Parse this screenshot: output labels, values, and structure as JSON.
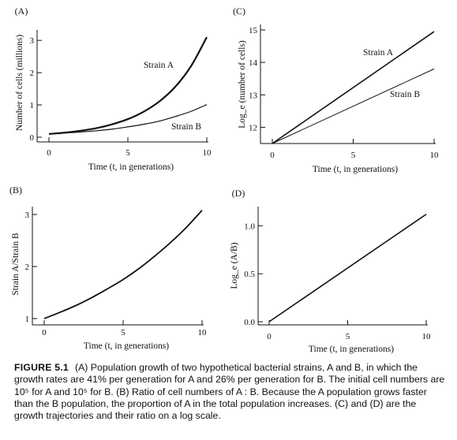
{
  "caption": {
    "label": "FIGURE 5.1",
    "text": "(A) Population growth of two hypothetical bacterial strains, A and B, in which the growth rates are 41% per generation for A and 26% per generation for B. The initial cell numbers are 10⁵ for A and 10⁵ for B. (B) Ratio of cell numbers of A : B. Because the A population grows faster than the B population, the proportion of A in the total population increases. (C) and (D) are the growth trajectories and their ratio on a log scale."
  },
  "chart_data": [
    {
      "panel": "(A)",
      "type": "line",
      "xlabel": "Time (t, in generations)",
      "ylabel": "Number of cells (millions)",
      "xlim": [
        0,
        10
      ],
      "ylim": [
        0,
        3.2
      ],
      "xticks": [
        0,
        5,
        10
      ],
      "yticks": [
        0,
        1,
        2,
        3
      ],
      "series": [
        {
          "name": "Strain A",
          "x": [
            0,
            1,
            2,
            3,
            4,
            5,
            6,
            7,
            8,
            9,
            10
          ],
          "y": [
            0.1,
            0.14,
            0.2,
            0.28,
            0.4,
            0.56,
            0.79,
            1.11,
            1.56,
            2.2,
            3.1
          ]
        },
        {
          "name": "Strain B",
          "x": [
            0,
            1,
            2,
            3,
            4,
            5,
            6,
            7,
            8,
            9,
            10
          ],
          "y": [
            0.1,
            0.13,
            0.16,
            0.2,
            0.25,
            0.32,
            0.4,
            0.5,
            0.64,
            0.8,
            1.01
          ]
        }
      ]
    },
    {
      "panel": "(B)",
      "type": "line",
      "xlabel": "Time (t, in generations)",
      "ylabel": "Strain A/Strain B",
      "xlim": [
        0,
        10
      ],
      "ylim": [
        1,
        3
      ],
      "xticks": [
        0,
        5,
        10
      ],
      "yticks": [
        1,
        2,
        3
      ],
      "series": [
        {
          "name": "",
          "x": [
            0,
            1,
            2,
            3,
            4,
            5,
            6,
            7,
            8,
            9,
            10
          ],
          "y": [
            1.0,
            1.12,
            1.25,
            1.4,
            1.57,
            1.75,
            1.96,
            2.2,
            2.46,
            2.75,
            3.08
          ]
        }
      ]
    },
    {
      "panel": "(C)",
      "type": "line",
      "xlabel": "Time (t, in generations)",
      "ylabel": "Log_e (number of cells)",
      "xlim": [
        0,
        10
      ],
      "ylim": [
        11.5,
        15
      ],
      "xticks": [
        0,
        5,
        10
      ],
      "yticks": [
        12,
        13,
        14,
        15
      ],
      "series": [
        {
          "name": "Strain A",
          "x": [
            0,
            10
          ],
          "y": [
            11.5,
            14.95
          ]
        },
        {
          "name": "Strain B",
          "x": [
            0,
            10
          ],
          "y": [
            11.5,
            13.8
          ]
        }
      ]
    },
    {
      "panel": "(D)",
      "type": "line",
      "xlabel": "Time (t, in generations)",
      "ylabel": "Log_e (A/B)",
      "xlim": [
        0,
        10
      ],
      "ylim": [
        0,
        1.2
      ],
      "xticks": [
        0,
        5,
        10
      ],
      "yticks": [
        0.0,
        0.5,
        1.0
      ],
      "ytick_labels": [
        "0.0",
        "0.5",
        "1.0"
      ],
      "series": [
        {
          "name": "",
          "x": [
            0,
            10
          ],
          "y": [
            0.0,
            1.12
          ]
        }
      ]
    }
  ]
}
